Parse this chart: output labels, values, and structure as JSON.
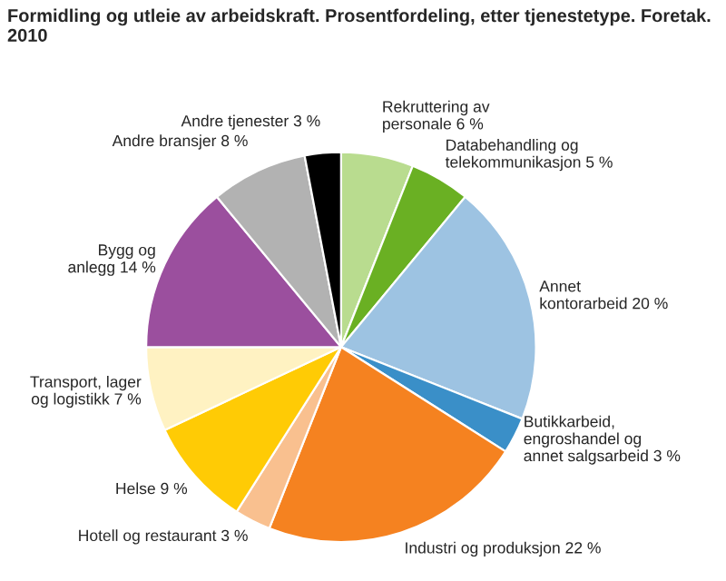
{
  "chart_data": {
    "type": "pie",
    "title": "Formidling og utleie av arbeidskraft. Prosentfordeling, etter tjenestetype. Foretak. 2010",
    "categories": [
      "Rekruttering av\npersonale",
      "Databehandling og\ntelekommunikasjon",
      "Annet\nkontorarbeid",
      "Butikkarbeid,\nengroshandel og\nannet salgsarbeid",
      "Industri og produksjon",
      "Hotell og restaurant",
      "Helse",
      "Transport, lager\nog logistikk",
      "Bygg og\nanlegg",
      "Andre bransjer",
      "Andre tjenester"
    ],
    "values": [
      6,
      5,
      20,
      3,
      22,
      3,
      9,
      7,
      14,
      8,
      3
    ],
    "value_labels": [
      "6 %",
      "5 %",
      "20 %",
      "3 %",
      "22 %",
      "3 %",
      "9 %",
      "7 %",
      "14 %",
      "8 %",
      "3 %"
    ],
    "colors": [
      "#b9dc8f",
      "#6ab023",
      "#9dc3e2",
      "#3a8fc8",
      "#f58220",
      "#f9c08f",
      "#ffcb05",
      "#fff2c2",
      "#9b4f9e",
      "#b2b2b2",
      "#000000"
    ],
    "legend": false
  }
}
